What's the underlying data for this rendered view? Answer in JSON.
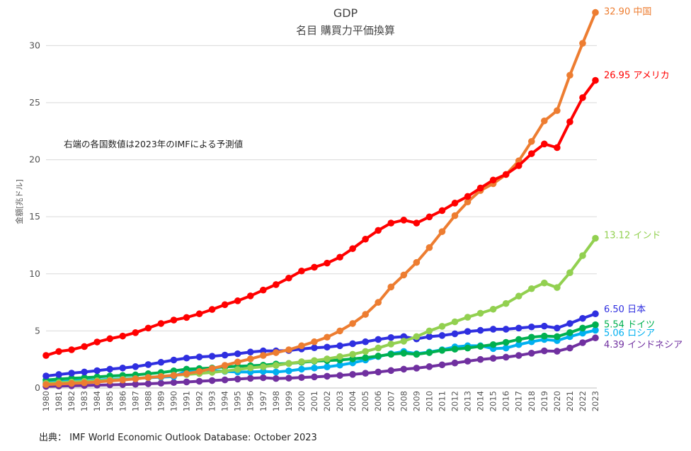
{
  "chart_data": {
    "type": "line",
    "title": "GDP",
    "subtitle": "名目 購買力平価換算",
    "ylabel": "金額[兆ドル]",
    "xlabel": "",
    "ylim": [
      0,
      33
    ],
    "yticks": [
      0,
      5,
      10,
      15,
      20,
      25,
      30
    ],
    "grid": true,
    "note": "右端の各国数値は2023年のIMFによる予測値",
    "source": "出典：  IMF World Economic Outlook Database: October 2023",
    "x": [
      1980,
      1981,
      1982,
      1983,
      1984,
      1985,
      1986,
      1987,
      1988,
      1989,
      1990,
      1991,
      1992,
      1993,
      1994,
      1995,
      1996,
      1997,
      1998,
      1999,
      2000,
      2001,
      2002,
      2003,
      2004,
      2005,
      2006,
      2007,
      2008,
      2009,
      2010,
      2011,
      2012,
      2013,
      2014,
      2015,
      2016,
      2017,
      2018,
      2019,
      2020,
      2021,
      2022,
      2023
    ],
    "series": [
      {
        "name": "インドネシア",
        "label": "4.39 インドネシア",
        "color": "#7030a0",
        "values": [
          0.14,
          0.17,
          0.19,
          0.22,
          0.25,
          0.27,
          0.3,
          0.33,
          0.37,
          0.42,
          0.48,
          0.53,
          0.59,
          0.65,
          0.71,
          0.78,
          0.85,
          0.9,
          0.83,
          0.86,
          0.92,
          0.97,
          1.03,
          1.1,
          1.19,
          1.29,
          1.4,
          1.53,
          1.65,
          1.74,
          1.87,
          2.03,
          2.19,
          2.35,
          2.5,
          2.6,
          2.7,
          2.85,
          3.05,
          3.25,
          3.22,
          3.5,
          3.97,
          4.39
        ]
      },
      {
        "name": "ロシア",
        "label": "5.06 ロシア",
        "color": "#00b0f0",
        "values": [
          0.5,
          0.55,
          0.6,
          0.65,
          0.7,
          0.75,
          0.8,
          0.85,
          0.9,
          0.95,
          1.0,
          1.5,
          1.6,
          1.55,
          1.45,
          1.4,
          1.4,
          1.45,
          1.4,
          1.5,
          1.65,
          1.75,
          1.85,
          2.0,
          2.2,
          2.45,
          2.75,
          3.0,
          3.2,
          3.0,
          3.15,
          3.35,
          3.6,
          3.7,
          3.7,
          3.45,
          3.5,
          3.8,
          4.05,
          4.25,
          4.15,
          4.5,
          4.8,
          5.06
        ]
      },
      {
        "name": "ドイツ",
        "label": "5.54 ドイツ",
        "color": "#00b050",
        "values": [
          0.7,
          0.78,
          0.85,
          0.9,
          0.97,
          1.05,
          1.1,
          1.15,
          1.25,
          1.35,
          1.5,
          1.65,
          1.7,
          1.75,
          1.85,
          1.9,
          1.95,
          2.0,
          2.1,
          2.15,
          2.25,
          2.35,
          2.4,
          2.45,
          2.55,
          2.65,
          2.8,
          2.95,
          3.05,
          2.95,
          3.1,
          3.3,
          3.4,
          3.5,
          3.65,
          3.8,
          4.0,
          4.25,
          4.45,
          4.55,
          4.5,
          4.85,
          5.25,
          5.54
        ]
      },
      {
        "name": "日本",
        "label": "6.50 日本",
        "color": "#2f2fe0",
        "values": [
          1.05,
          1.18,
          1.3,
          1.4,
          1.52,
          1.65,
          1.75,
          1.87,
          2.05,
          2.25,
          2.45,
          2.62,
          2.72,
          2.78,
          2.88,
          3.0,
          3.15,
          3.25,
          3.25,
          3.28,
          3.42,
          3.52,
          3.58,
          3.7,
          3.88,
          4.05,
          4.25,
          4.42,
          4.5,
          4.3,
          4.5,
          4.6,
          4.75,
          4.95,
          5.05,
          5.15,
          5.15,
          5.25,
          5.35,
          5.42,
          5.25,
          5.65,
          6.1,
          6.5
        ]
      },
      {
        "name": "インド",
        "label": "13.12 インド",
        "color": "#92d050",
        "values": [
          0.4,
          0.46,
          0.52,
          0.58,
          0.63,
          0.7,
          0.76,
          0.82,
          0.92,
          1.02,
          1.12,
          1.18,
          1.27,
          1.37,
          1.48,
          1.62,
          1.76,
          1.86,
          1.98,
          2.15,
          2.3,
          2.4,
          2.55,
          2.75,
          2.95,
          3.2,
          3.5,
          3.85,
          4.1,
          4.5,
          5.0,
          5.4,
          5.8,
          6.2,
          6.55,
          6.9,
          7.4,
          8.05,
          8.7,
          9.2,
          8.8,
          10.1,
          11.6,
          13.12
        ]
      },
      {
        "name": "中国",
        "label": "32.90 中国",
        "color": "#ed7d31",
        "values": [
          0.3,
          0.35,
          0.4,
          0.45,
          0.53,
          0.62,
          0.7,
          0.8,
          0.92,
          1.0,
          1.1,
          1.25,
          1.45,
          1.7,
          1.98,
          2.28,
          2.55,
          2.85,
          3.1,
          3.35,
          3.7,
          4.05,
          4.45,
          5.0,
          5.65,
          6.45,
          7.5,
          8.85,
          9.9,
          11.0,
          12.3,
          13.7,
          15.1,
          16.3,
          17.3,
          17.9,
          18.7,
          19.9,
          21.6,
          23.4,
          24.3,
          27.4,
          30.2,
          32.9
        ]
      },
      {
        "name": "アメリカ",
        "label": "26.95 アメリカ",
        "color": "#ff0000",
        "values": [
          2.85,
          3.2,
          3.35,
          3.63,
          4.03,
          4.32,
          4.55,
          4.85,
          5.25,
          5.65,
          5.95,
          6.18,
          6.5,
          6.88,
          7.3,
          7.64,
          8.07,
          8.58,
          9.06,
          9.63,
          10.25,
          10.58,
          10.94,
          11.46,
          12.21,
          13.04,
          13.81,
          14.45,
          14.71,
          14.45,
          14.99,
          15.54,
          16.2,
          16.78,
          17.52,
          18.22,
          18.71,
          19.48,
          20.53,
          21.38,
          21.06,
          23.32,
          25.44,
          26.95
        ]
      }
    ]
  }
}
